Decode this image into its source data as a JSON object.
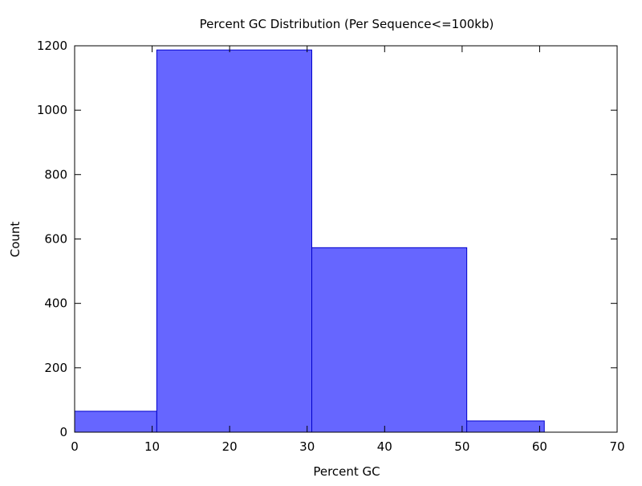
{
  "chart_data": {
    "type": "bar",
    "title": "Percent GC Distribution (Per Sequence<=100kb)",
    "xlabel": "Percent GC",
    "ylabel": "Count",
    "xlim": [
      0,
      70
    ],
    "ylim": [
      0,
      1200
    ],
    "x_ticks": [
      0,
      10,
      20,
      30,
      40,
      50,
      60,
      70
    ],
    "y_ticks": [
      0,
      200,
      400,
      600,
      800,
      1000,
      1200
    ],
    "bins": [
      {
        "start": 0,
        "end": 10.6,
        "value": 65
      },
      {
        "start": 10.6,
        "end": 30.6,
        "value": 1187
      },
      {
        "start": 30.6,
        "end": 50.6,
        "value": 573
      },
      {
        "start": 50.6,
        "end": 60.6,
        "value": 35
      }
    ],
    "grid": false,
    "colors": {
      "bar_fill": "#6666ff",
      "bar_stroke": "#0000cc",
      "axis": "#000000"
    }
  }
}
